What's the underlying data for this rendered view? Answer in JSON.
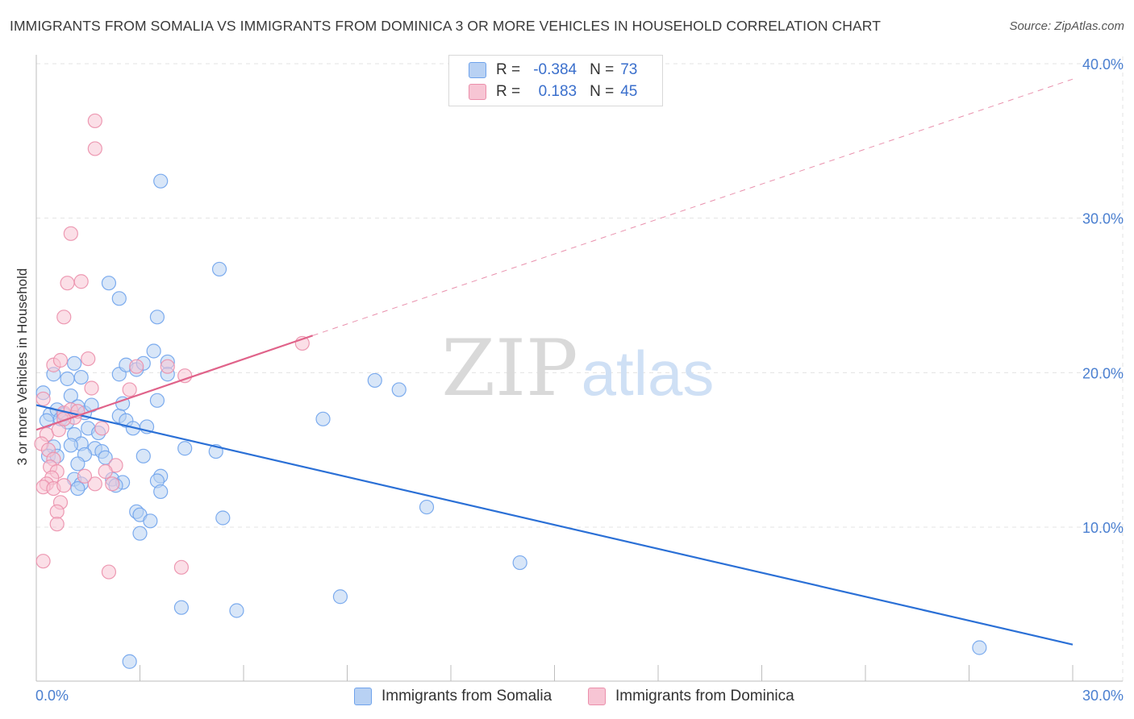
{
  "header": {
    "title": "IMMIGRANTS FROM SOMALIA VS IMMIGRANTS FROM DOMINICA 3 OR MORE VEHICLES IN HOUSEHOLD CORRELATION CHART",
    "source": "Source: ZipAtlas.com"
  },
  "watermark": {
    "zip": "ZIP",
    "atlas": "atlas"
  },
  "legend": {
    "r_label": "R =",
    "n_label": "N =",
    "series": [
      {
        "r": "-0.384",
        "n": "73"
      },
      {
        "r": "0.183",
        "n": "45"
      }
    ]
  },
  "chart_data": {
    "type": "scatter",
    "title": "IMMIGRANTS FROM SOMALIA VS IMMIGRANTS FROM DOMINICA 3 OR MORE VEHICLES IN HOUSEHOLD CORRELATION CHART",
    "xlabel": "",
    "ylabel": "3 or more Vehicles in Household",
    "xlim": [
      0,
      30
    ],
    "ylim": [
      0,
      41
    ],
    "x_tick_labels": [
      "0.0%",
      "30.0%"
    ],
    "y_ticks": [
      10,
      20,
      30,
      40
    ],
    "y_tick_labels": [
      "10.0%",
      "20.0%",
      "30.0%",
      "40.0%"
    ],
    "grid": true,
    "series": [
      {
        "name": "Immigrants from Somalia",
        "color": "#6fa3ec",
        "fill": "#b8d1f3",
        "line_color": "#2b70d6",
        "trend": {
          "x": [
            0,
            30
          ],
          "y": [
            17.9,
            2.4
          ],
          "dashed_after": null
        },
        "points": [
          [
            0.2,
            18.7
          ],
          [
            0.4,
            17.3
          ],
          [
            0.3,
            16.9
          ],
          [
            0.5,
            15.2
          ],
          [
            0.35,
            14.6
          ],
          [
            0.6,
            17.6
          ],
          [
            0.7,
            17.0
          ],
          [
            0.5,
            19.9
          ],
          [
            0.9,
            19.6
          ],
          [
            1.1,
            20.6
          ],
          [
            1.3,
            19.7
          ],
          [
            1.0,
            18.5
          ],
          [
            0.8,
            17.3
          ],
          [
            0.9,
            16.8
          ],
          [
            1.2,
            17.8
          ],
          [
            1.4,
            17.4
          ],
          [
            1.6,
            17.9
          ],
          [
            1.1,
            16.0
          ],
          [
            1.5,
            16.4
          ],
          [
            1.8,
            16.1
          ],
          [
            1.3,
            15.4
          ],
          [
            1.7,
            15.1
          ],
          [
            1.9,
            14.9
          ],
          [
            2.0,
            14.5
          ],
          [
            1.4,
            14.7
          ],
          [
            1.2,
            14.1
          ],
          [
            1.1,
            13.1
          ],
          [
            1.3,
            12.8
          ],
          [
            1.2,
            12.5
          ],
          [
            2.2,
            13.1
          ],
          [
            2.5,
            12.9
          ],
          [
            2.3,
            12.7
          ],
          [
            2.4,
            17.2
          ],
          [
            2.6,
            16.9
          ],
          [
            2.8,
            16.4
          ],
          [
            2.5,
            18.0
          ],
          [
            2.4,
            19.9
          ],
          [
            2.6,
            20.5
          ],
          [
            2.9,
            20.2
          ],
          [
            3.1,
            20.6
          ],
          [
            3.4,
            21.4
          ],
          [
            3.2,
            16.5
          ],
          [
            3.5,
            18.2
          ],
          [
            3.1,
            14.6
          ],
          [
            3.6,
            13.3
          ],
          [
            3.5,
            13.0
          ],
          [
            3.6,
            12.3
          ],
          [
            2.9,
            11.0
          ],
          [
            3.0,
            10.8
          ],
          [
            3.3,
            10.4
          ],
          [
            3.0,
            9.6
          ],
          [
            3.8,
            20.7
          ],
          [
            3.8,
            19.9
          ],
          [
            4.3,
            15.1
          ],
          [
            5.2,
            14.9
          ],
          [
            5.4,
            10.6
          ],
          [
            2.1,
            25.8
          ],
          [
            2.4,
            24.8
          ],
          [
            3.5,
            23.6
          ],
          [
            5.3,
            26.7
          ],
          [
            3.6,
            32.4
          ],
          [
            8.3,
            17.0
          ],
          [
            9.8,
            19.5
          ],
          [
            10.5,
            18.9
          ],
          [
            11.3,
            11.3
          ],
          [
            14.0,
            7.7
          ],
          [
            8.8,
            5.5
          ],
          [
            4.2,
            4.8
          ],
          [
            5.8,
            4.6
          ],
          [
            2.7,
            1.3
          ],
          [
            27.3,
            2.2
          ],
          [
            0.6,
            14.6
          ],
          [
            1.0,
            15.3
          ]
        ]
      },
      {
        "name": "Immigrants from Dominica",
        "color": "#eb8fab",
        "fill": "#f7c5d4",
        "line_color": "#e0638a",
        "trend": {
          "x": [
            0,
            8
          ],
          "y": [
            16.3,
            22.4
          ],
          "dashed_after": 8,
          "dashed_to": [
            30,
            39.0
          ]
        },
        "points": [
          [
            0.2,
            18.3
          ],
          [
            0.3,
            16.0
          ],
          [
            0.15,
            15.4
          ],
          [
            0.35,
            15.0
          ],
          [
            0.5,
            14.4
          ],
          [
            0.4,
            13.9
          ],
          [
            0.6,
            13.6
          ],
          [
            0.45,
            13.2
          ],
          [
            0.3,
            12.8
          ],
          [
            0.2,
            12.6
          ],
          [
            0.5,
            12.5
          ],
          [
            0.8,
            12.7
          ],
          [
            0.7,
            11.6
          ],
          [
            0.6,
            11.0
          ],
          [
            0.6,
            10.2
          ],
          [
            0.65,
            16.3
          ],
          [
            0.8,
            17.4
          ],
          [
            1.0,
            17.6
          ],
          [
            1.1,
            17.1
          ],
          [
            0.8,
            17.0
          ],
          [
            0.5,
            20.5
          ],
          [
            0.7,
            20.8
          ],
          [
            1.5,
            20.9
          ],
          [
            1.6,
            19.0
          ],
          [
            1.9,
            16.4
          ],
          [
            2.3,
            14.0
          ],
          [
            2.0,
            13.6
          ],
          [
            2.2,
            12.8
          ],
          [
            1.7,
            12.8
          ],
          [
            1.4,
            13.3
          ],
          [
            2.7,
            18.9
          ],
          [
            2.9,
            20.4
          ],
          [
            3.8,
            20.4
          ],
          [
            4.3,
            19.8
          ],
          [
            7.7,
            21.9
          ],
          [
            0.8,
            23.6
          ],
          [
            0.9,
            25.8
          ],
          [
            1.3,
            25.9
          ],
          [
            1.0,
            29.0
          ],
          [
            1.7,
            34.5
          ],
          [
            1.7,
            36.3
          ],
          [
            0.2,
            7.8
          ],
          [
            2.1,
            7.1
          ],
          [
            4.2,
            7.4
          ],
          [
            1.2,
            17.5
          ]
        ]
      }
    ]
  }
}
